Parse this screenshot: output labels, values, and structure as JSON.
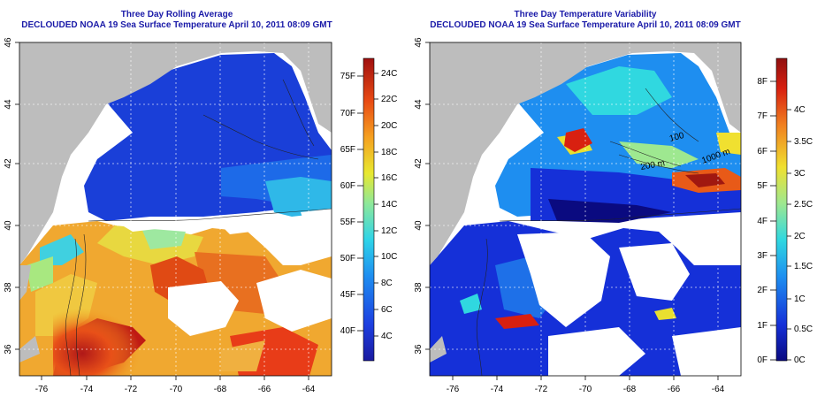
{
  "left_panel": {
    "title_line1": "Three Day Rolling Average",
    "title_line2": "DECLOUDED NOAA 19 Sea Surface Temperature April 10, 2011 08:09 GMT",
    "colorbar_celsius": [
      "4C",
      "6C",
      "8C",
      "10C",
      "12C",
      "14C",
      "16C",
      "18C",
      "20C",
      "22C",
      "24C"
    ],
    "colorbar_fahrenheit": [
      "40F",
      "45F",
      "50F",
      "55F",
      "60F",
      "65F",
      "70F",
      "75F"
    ]
  },
  "right_panel": {
    "title_line1": "Three Day Temperature Variability",
    "title_line2": "DECLOUDED NOAA 19 Sea Surface Temperature April 10, 2011 08:09 GMT",
    "colorbar_celsius": [
      "0C",
      "0.5C",
      "1C",
      "1.5C",
      "2C",
      "2.5C",
      "3C",
      "3.5C",
      "4C"
    ],
    "colorbar_fahrenheit": [
      "0F",
      "1F",
      "2F",
      "3F",
      "4F",
      "5F",
      "6F",
      "7F",
      "8F"
    ],
    "contour_labels": [
      "100",
      "200 m",
      "1000 m"
    ]
  },
  "axes": {
    "x_ticks": [
      "-76",
      "-74",
      "-72",
      "-70",
      "-68",
      "-66",
      "-64"
    ],
    "y_ticks": [
      "36",
      "38",
      "40",
      "42",
      "44",
      "46"
    ]
  },
  "colors": {
    "land": "#bdbdbd",
    "title": "#1a1aa8",
    "cloud": "#ffffff"
  }
}
